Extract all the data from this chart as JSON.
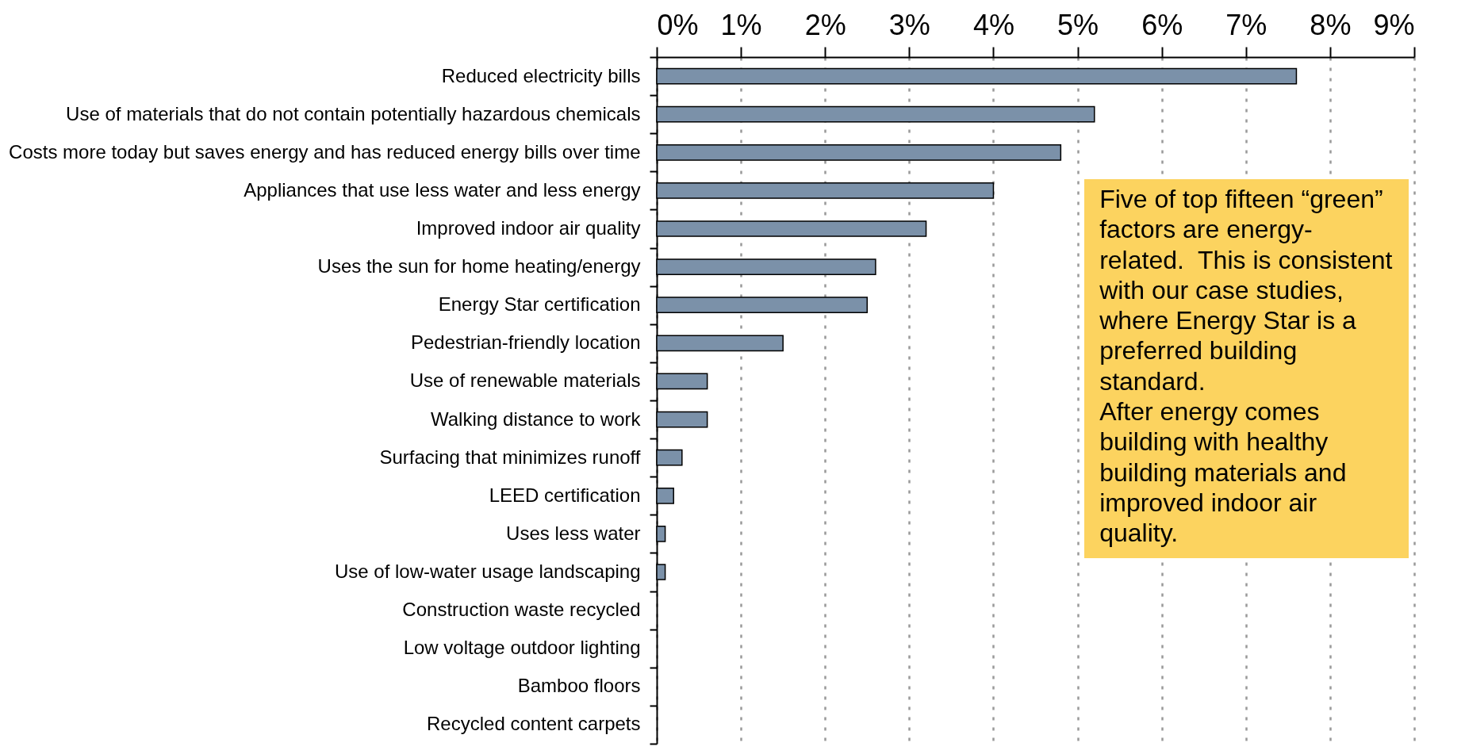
{
  "chart_data": {
    "type": "bar",
    "orientation": "horizontal",
    "categories": [
      "Reduced electricity bills",
      "Use of materials that do not contain potentially hazardous chemicals",
      "Costs more today but saves energy and has reduced energy bills over time",
      "Appliances that use less water and less energy",
      "Improved indoor air quality",
      "Uses the sun for home heating/energy",
      "Energy Star certification",
      "Pedestrian-friendly location",
      "Use of renewable materials",
      "Walking distance to work",
      "Surfacing that minimizes runoff",
      "LEED certification",
      "Uses less water",
      "Use of low-water usage landscaping",
      "Construction waste recycled",
      "Low voltage outdoor lighting",
      "Bamboo floors",
      "Recycled content carpets"
    ],
    "values": [
      7.6,
      5.2,
      4.8,
      4.0,
      3.2,
      2.6,
      2.5,
      1.5,
      0.6,
      0.6,
      0.3,
      0.2,
      0.1,
      0.1,
      0,
      0,
      0,
      0
    ],
    "color": "#7b91a9",
    "xlim": [
      0,
      9
    ],
    "xticks": [
      {
        "value": 0,
        "label": "0%"
      },
      {
        "value": 1,
        "label": "1%"
      },
      {
        "value": 2,
        "label": "2%"
      },
      {
        "value": 3,
        "label": "3%"
      },
      {
        "value": 4,
        "label": "4%"
      },
      {
        "value": 5,
        "label": "5%"
      },
      {
        "value": 6,
        "label": "6%"
      },
      {
        "value": 7,
        "label": "7%"
      },
      {
        "value": 8,
        "label": "8%"
      },
      {
        "value": 9,
        "label": "9%"
      }
    ],
    "grid": "x",
    "annotations": [
      "Five of top fifteen “green” factors are energy-related.  This is consistent with our case studies, where Energy Star is a preferred building standard.\nAfter energy comes building with healthy building materials and improved indoor air quality."
    ]
  }
}
